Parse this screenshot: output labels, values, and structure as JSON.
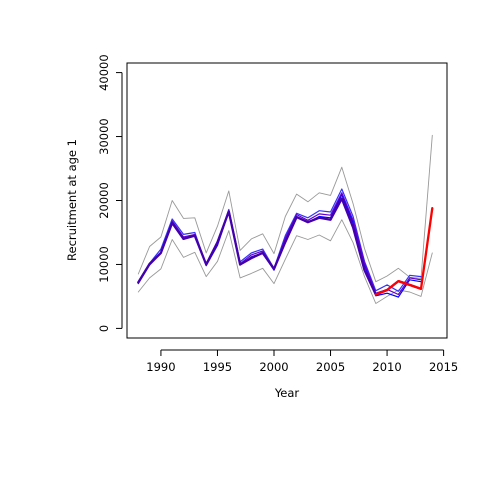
{
  "chart_data": {
    "type": "line",
    "xlabel": "Year",
    "ylabel": "Recruitment at age 1",
    "xlim": [
      1987,
      2015.3
    ],
    "ylim": [
      -1500,
      41500
    ],
    "x_ticks": [
      1990,
      1995,
      2000,
      2005,
      2010,
      2015
    ],
    "y_ticks": [
      0,
      10000,
      20000,
      30000,
      40000
    ],
    "grid": false,
    "legend": "none",
    "series": [
      {
        "color": "#999999",
        "width": 0.9,
        "x": [
          1988,
          1989,
          1990,
          1991,
          1992,
          1993,
          1994,
          1995,
          1996,
          1997,
          1998,
          1999,
          2000,
          2001,
          2002,
          2003,
          2004,
          2005,
          2006,
          2007,
          2008,
          2009,
          2010,
          2011,
          2012,
          2013,
          2014
        ],
        "y": [
          8500,
          12800,
          14300,
          20000,
          17200,
          17300,
          11800,
          16000,
          21500,
          12200,
          14000,
          14800,
          11700,
          17500,
          21000,
          19800,
          21200,
          20800,
          25200,
          19500,
          12500,
          7300,
          8200,
          9400,
          8000,
          7800,
          30200
        ]
      },
      {
        "color": "#999999",
        "width": 0.9,
        "x": [
          1988,
          1989,
          1990,
          1991,
          1992,
          1993,
          1994,
          1995,
          1996,
          1997,
          1998,
          1999,
          2000,
          2001,
          2002,
          2003,
          2004,
          2005,
          2006,
          2007,
          2008,
          2009,
          2010,
          2011,
          2012,
          2013,
          2014
        ],
        "y": [
          5700,
          7900,
          9300,
          13900,
          11100,
          11900,
          8100,
          10500,
          15300,
          7900,
          8600,
          9400,
          7000,
          10800,
          14500,
          13900,
          14600,
          13700,
          17000,
          13400,
          8100,
          3900,
          5000,
          6000,
          5700,
          5000,
          11800
        ]
      },
      {
        "color": "#3333ff",
        "width": 1.2,
        "x": [
          1988,
          1989,
          1990,
          1991,
          1992,
          1993,
          1994,
          1995,
          1996,
          1997,
          1998,
          1999,
          2000,
          2001,
          2002,
          2003,
          2004,
          2005,
          2006,
          2007,
          2008,
          2009,
          2010,
          2011,
          2012,
          2013
        ],
        "y": [
          7300,
          10200,
          12400,
          17100,
          14700,
          15000,
          10000,
          13400,
          18600,
          10400,
          11800,
          12400,
          9400,
          14500,
          18000,
          17300,
          18400,
          18200,
          21800,
          17500,
          10500,
          5900,
          6800,
          5800,
          8300,
          8100
        ]
      },
      {
        "color": "#0000ff",
        "width": 1.2,
        "x": [
          1988,
          1989,
          1990,
          1991,
          1992,
          1993,
          1994,
          1995,
          1996,
          1997,
          1998,
          1999,
          2000,
          2001,
          2002,
          2003,
          2004,
          2005,
          2006,
          2007,
          2008,
          2009,
          2010,
          2011,
          2012,
          2013
        ],
        "y": [
          7000,
          9900,
          11700,
          16600,
          14100,
          14500,
          9800,
          13000,
          18200,
          9900,
          11200,
          11800,
          9100,
          13700,
          17500,
          16600,
          17500,
          17300,
          20900,
          16500,
          9900,
          5100,
          5500,
          4900,
          7600,
          7300
        ]
      },
      {
        "color": "#6600cc",
        "width": 1.2,
        "x": [
          1988,
          1989,
          1990,
          1991,
          1992,
          1993,
          1994,
          1995,
          1996,
          1997,
          1998,
          1999,
          2000,
          2001,
          2002,
          2003,
          2004,
          2005,
          2006,
          2007,
          2008,
          2009,
          2010,
          2011,
          2012,
          2013
        ],
        "y": [
          7100,
          10000,
          11900,
          16800,
          14300,
          14700,
          9900,
          13200,
          18400,
          10100,
          11500,
          12100,
          9200,
          14100,
          17800,
          16900,
          17900,
          17700,
          21200,
          16900,
          10200,
          5500,
          6100,
          5300,
          7900,
          7600
        ]
      },
      {
        "color": "#4400aa",
        "width": 2.3,
        "x": [
          1988,
          1989,
          1990,
          1991,
          1992,
          1993,
          1994,
          1995,
          1996,
          1997,
          1998,
          1999,
          2000,
          2001,
          2002,
          2003,
          2004,
          2005,
          2006,
          2007,
          2008,
          2009,
          2010,
          2011,
          2012,
          2013
        ],
        "y": [
          7200,
          10100,
          11800,
          16500,
          14000,
          14500,
          10000,
          13500,
          18300,
          10000,
          11000,
          11800,
          9300,
          13500,
          17400,
          16600,
          17300,
          17000,
          20300,
          15800,
          9100,
          5300,
          6000,
          7400,
          6800,
          6200
        ]
      },
      {
        "color": "#ff0000",
        "width": 2.3,
        "x": [
          2009,
          2010,
          2011,
          2012,
          2013,
          2014
        ],
        "y": [
          5300,
          6000,
          7400,
          6800,
          6200,
          18800
        ]
      }
    ]
  }
}
